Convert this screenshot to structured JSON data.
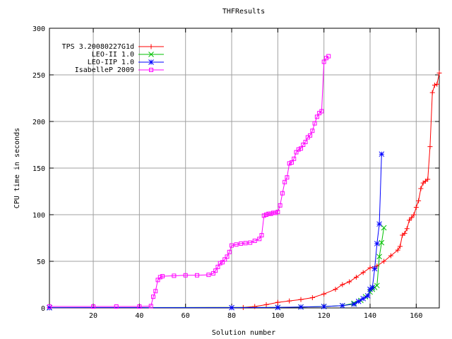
{
  "chart_data": {
    "type": "line",
    "title": "THFResults",
    "xlabel": "Solution number",
    "ylabel": "CPU time in seconds",
    "xlim": [
      1,
      170
    ],
    "ylim": [
      0,
      300
    ],
    "xticks": [
      20,
      40,
      60,
      80,
      100,
      120,
      140,
      160
    ],
    "yticks": [
      0,
      50,
      100,
      150,
      200,
      250,
      300
    ],
    "grid": true,
    "legend_position": "top-left",
    "series": [
      {
        "name": "TPS 3.20080227G1d",
        "color": "#ff0000",
        "marker": "plus",
        "points": [
          [
            1,
            0.1
          ],
          [
            85,
            0.5
          ],
          [
            90,
            1.5
          ],
          [
            95,
            3.5
          ],
          [
            100,
            6
          ],
          [
            105,
            7.5
          ],
          [
            110,
            9
          ],
          [
            115,
            11
          ],
          [
            120,
            15
          ],
          [
            125,
            20
          ],
          [
            128,
            25
          ],
          [
            131,
            28
          ],
          [
            134,
            33
          ],
          [
            137,
            38
          ],
          [
            140,
            43
          ],
          [
            143,
            45
          ],
          [
            146,
            50
          ],
          [
            149,
            56
          ],
          [
            152,
            62
          ],
          [
            153,
            66
          ],
          [
            154,
            78
          ],
          [
            155,
            80
          ],
          [
            156,
            85
          ],
          [
            157,
            94
          ],
          [
            158,
            97
          ],
          [
            159,
            100
          ],
          [
            160,
            108
          ],
          [
            161,
            115
          ],
          [
            162,
            128
          ],
          [
            163,
            134
          ],
          [
            164,
            136
          ],
          [
            165,
            138
          ],
          [
            166,
            173
          ],
          [
            167,
            231
          ],
          [
            168,
            239
          ],
          [
            169,
            240
          ],
          [
            170,
            252
          ]
        ]
      },
      {
        "name": "LEO-II 1.0",
        "color": "#00c000",
        "marker": "cross",
        "points": [
          [
            1,
            0.3
          ],
          [
            100,
            0.5
          ],
          [
            110,
            1
          ],
          [
            120,
            1.5
          ],
          [
            128,
            2.5
          ],
          [
            133,
            5
          ],
          [
            136,
            8
          ],
          [
            138,
            12
          ],
          [
            140,
            17
          ],
          [
            141,
            20
          ],
          [
            142,
            22
          ],
          [
            143,
            24
          ],
          [
            144,
            55
          ],
          [
            145,
            70
          ],
          [
            146,
            86
          ]
        ]
      },
      {
        "name": "LEO-IIP 1.0",
        "color": "#0000ff",
        "marker": "star",
        "points": [
          [
            1,
            0.2
          ],
          [
            80,
            0.3
          ],
          [
            100,
            0.5
          ],
          [
            110,
            1
          ],
          [
            120,
            1.5
          ],
          [
            128,
            2.5
          ],
          [
            133,
            4
          ],
          [
            135,
            7
          ],
          [
            137,
            10
          ],
          [
            139,
            13
          ],
          [
            140,
            20
          ],
          [
            141,
            22
          ],
          [
            142,
            42
          ],
          [
            143,
            69
          ],
          [
            144,
            90
          ],
          [
            145,
            165
          ]
        ]
      },
      {
        "name": "IsabelleP 2009",
        "color": "#ff00ff",
        "marker": "square",
        "points": [
          [
            1,
            1.5
          ],
          [
            20,
            1.5
          ],
          [
            30,
            1.5
          ],
          [
            40,
            1.5
          ],
          [
            45,
            2
          ],
          [
            46,
            12
          ],
          [
            47,
            18
          ],
          [
            48,
            30
          ],
          [
            49,
            33
          ],
          [
            50,
            34
          ],
          [
            55,
            34.5
          ],
          [
            60,
            35
          ],
          [
            65,
            35
          ],
          [
            70,
            35.5
          ],
          [
            72,
            37
          ],
          [
            73,
            40
          ],
          [
            74,
            44
          ],
          [
            75,
            48
          ],
          [
            76,
            49
          ],
          [
            77,
            52
          ],
          [
            78,
            55
          ],
          [
            79,
            60
          ],
          [
            80,
            67
          ],
          [
            82,
            68
          ],
          [
            84,
            69
          ],
          [
            86,
            69.5
          ],
          [
            88,
            70
          ],
          [
            90,
            72
          ],
          [
            92,
            74
          ],
          [
            93,
            78
          ],
          [
            94,
            99
          ],
          [
            95,
            100
          ],
          [
            96,
            101
          ],
          [
            97,
            101
          ],
          [
            98,
            102
          ],
          [
            99,
            102
          ],
          [
            100,
            103
          ],
          [
            101,
            110
          ],
          [
            102,
            123
          ],
          [
            103,
            135
          ],
          [
            104,
            140
          ],
          [
            105,
            155
          ],
          [
            106,
            156
          ],
          [
            107,
            160
          ],
          [
            108,
            167
          ],
          [
            109,
            170
          ],
          [
            110,
            171
          ],
          [
            111,
            175
          ],
          [
            112,
            178
          ],
          [
            113,
            183
          ],
          [
            114,
            185
          ],
          [
            115,
            190
          ],
          [
            116,
            198
          ],
          [
            117,
            205
          ],
          [
            118,
            209
          ],
          [
            119,
            211
          ],
          [
            120,
            264
          ],
          [
            121,
            268
          ],
          [
            122,
            270
          ]
        ]
      }
    ]
  }
}
